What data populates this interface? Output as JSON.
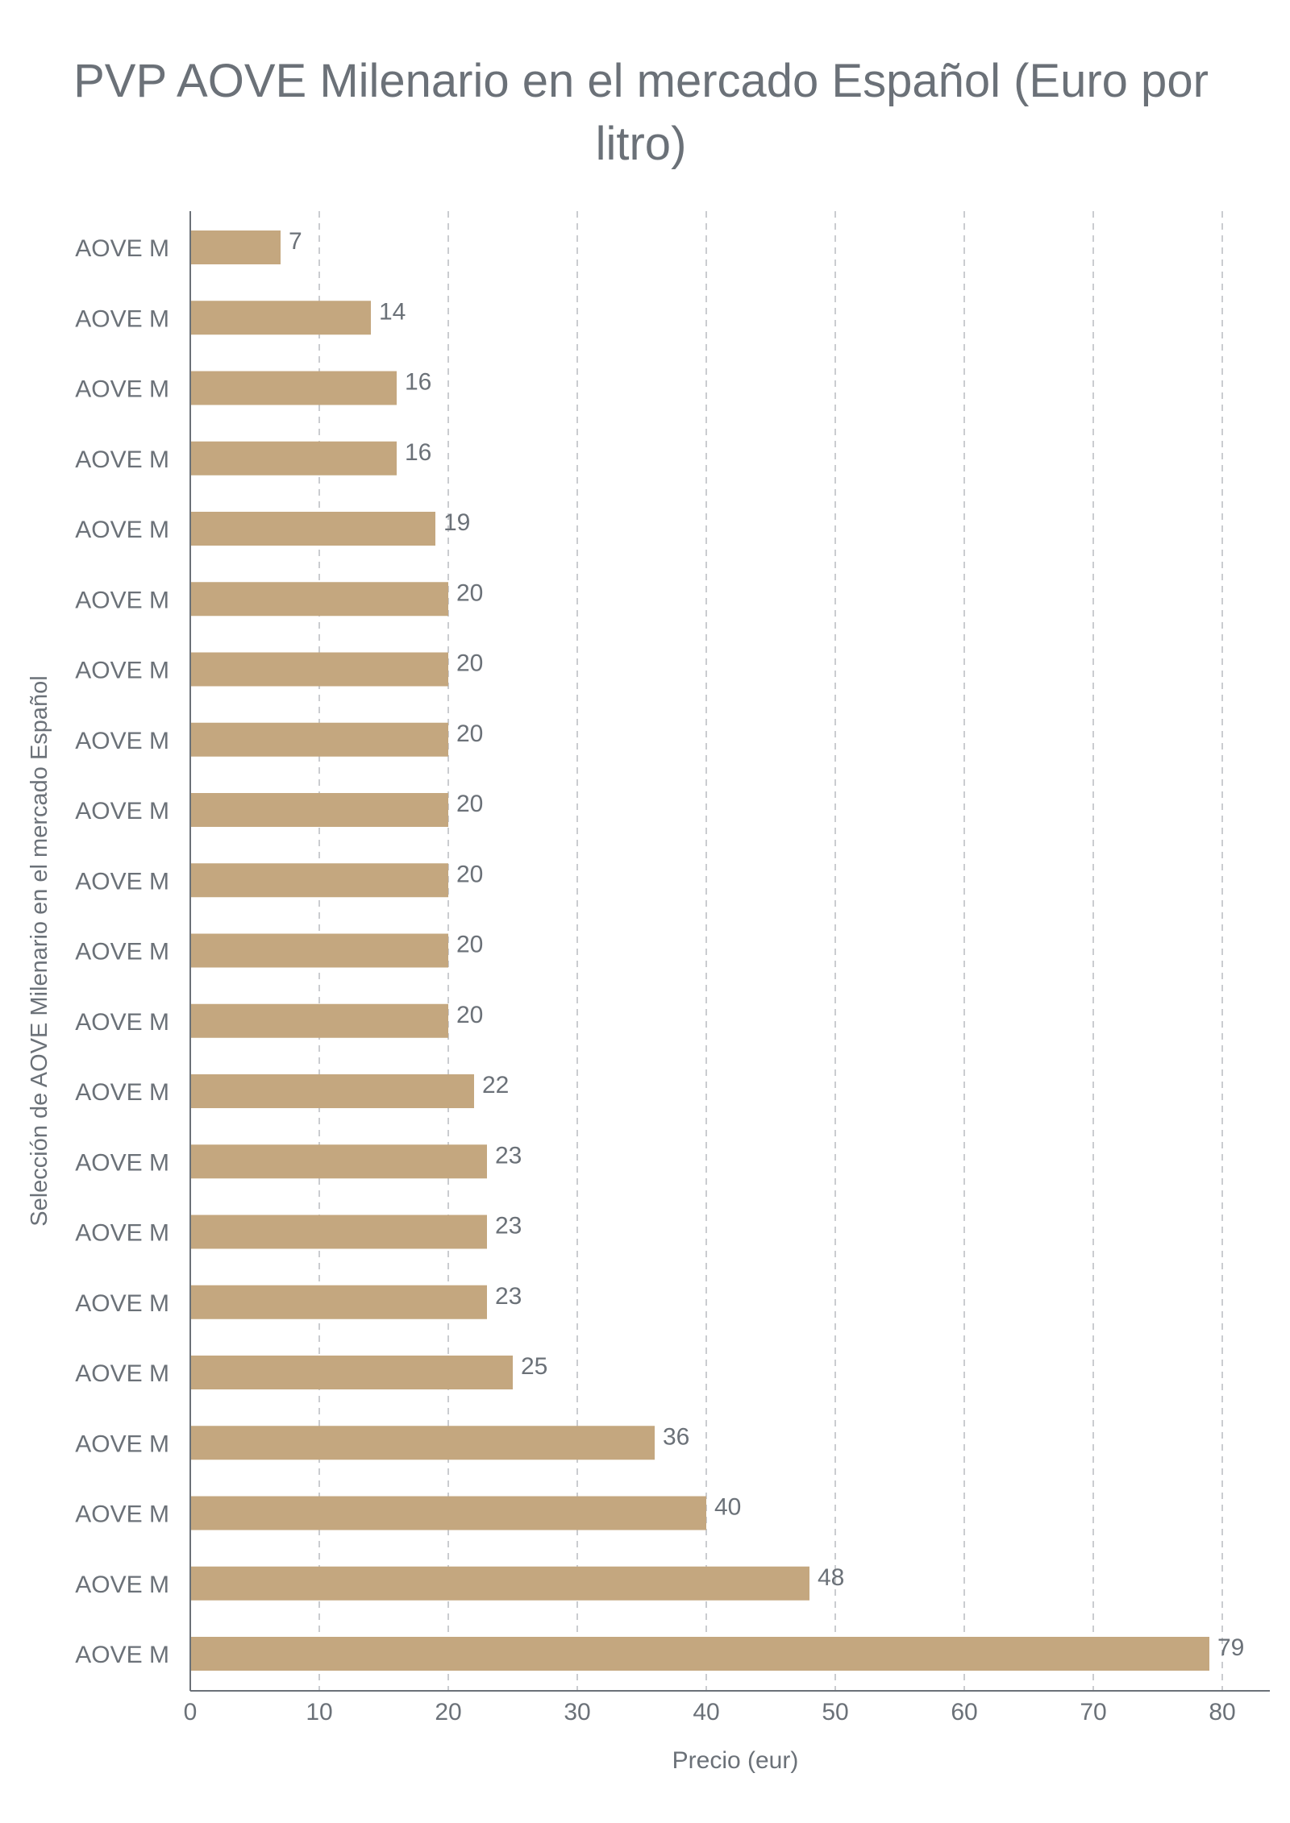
{
  "chart_data": {
    "type": "bar",
    "orientation": "horizontal",
    "title": "PVP AOVE Milenario en el mercado Español (Euro por litro)",
    "xlabel": "Precio (eur)",
    "ylabel": "Selección de AOVE Milenario en el mercado Español",
    "categories": [
      "AOVE M",
      "AOVE M",
      "AOVE M",
      "AOVE M",
      "AOVE M",
      "AOVE M",
      "AOVE M",
      "AOVE M",
      "AOVE M",
      "AOVE M",
      "AOVE M",
      "AOVE M",
      "AOVE M",
      "AOVE M",
      "AOVE M",
      "AOVE M",
      "AOVE M",
      "AOVE M",
      "AOVE M",
      "AOVE M",
      "AOVE M"
    ],
    "values": [
      7,
      14,
      16,
      16,
      19,
      20,
      20,
      20,
      20,
      20,
      20,
      20,
      22,
      23,
      23,
      23,
      25,
      36,
      40,
      48,
      79
    ],
    "value_labels": [
      "7",
      "14",
      "16",
      "16",
      "19",
      "20",
      "20",
      "20",
      "20",
      "20",
      "20",
      "20",
      "22",
      "23",
      "23",
      "23",
      "25",
      "36",
      "40",
      "48",
      "79"
    ],
    "xlim": [
      0,
      80
    ],
    "xticks": [
      "0",
      "10",
      "20",
      "30",
      "40",
      "50",
      "60",
      "70",
      "80"
    ],
    "grid": "vertical dashed",
    "legend": "none",
    "bar_color": "#c4a77f",
    "text_color": "#6b7178",
    "grid_color": "#b9bcc0"
  }
}
